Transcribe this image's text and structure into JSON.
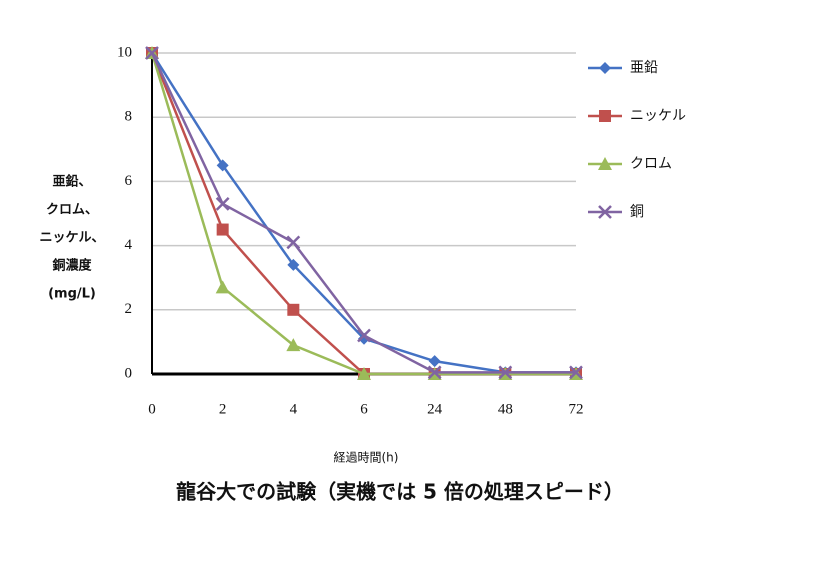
{
  "chart_data": {
    "type": "line",
    "y_label_lines": [
      "亜鉛、",
      "クロム、",
      "ニッケル、",
      "銅濃度",
      "(mg/L)"
    ],
    "x_label": "経過時間(h)",
    "caption": "龍谷大での試験（実機では 5 倍の処理スピード）",
    "categories": [
      "0",
      "2",
      "4",
      "6",
      "24",
      "48",
      "72"
    ],
    "series": [
      {
        "name": "亜鉛",
        "color": "#4472c4",
        "marker": "diamond",
        "values": [
          10,
          6.5,
          3.4,
          1.1,
          0.4,
          0.05,
          0.05
        ]
      },
      {
        "name": "ニッケル",
        "color": "#c0504d",
        "marker": "square",
        "values": [
          10,
          4.5,
          2.0,
          0,
          0,
          0,
          0
        ]
      },
      {
        "name": "クロム",
        "color": "#9bbb59",
        "marker": "triangle",
        "values": [
          10,
          2.7,
          0.9,
          0,
          0,
          0,
          0
        ]
      },
      {
        "name": "銅",
        "color": "#8064a2",
        "marker": "x",
        "values": [
          10,
          5.3,
          4.1,
          1.2,
          0.05,
          0.05,
          0.05
        ]
      }
    ],
    "ylim": [
      0,
      10
    ],
    "yticks": [
      0,
      2,
      4,
      6,
      8,
      10
    ],
    "grid": true,
    "legend": "right"
  }
}
